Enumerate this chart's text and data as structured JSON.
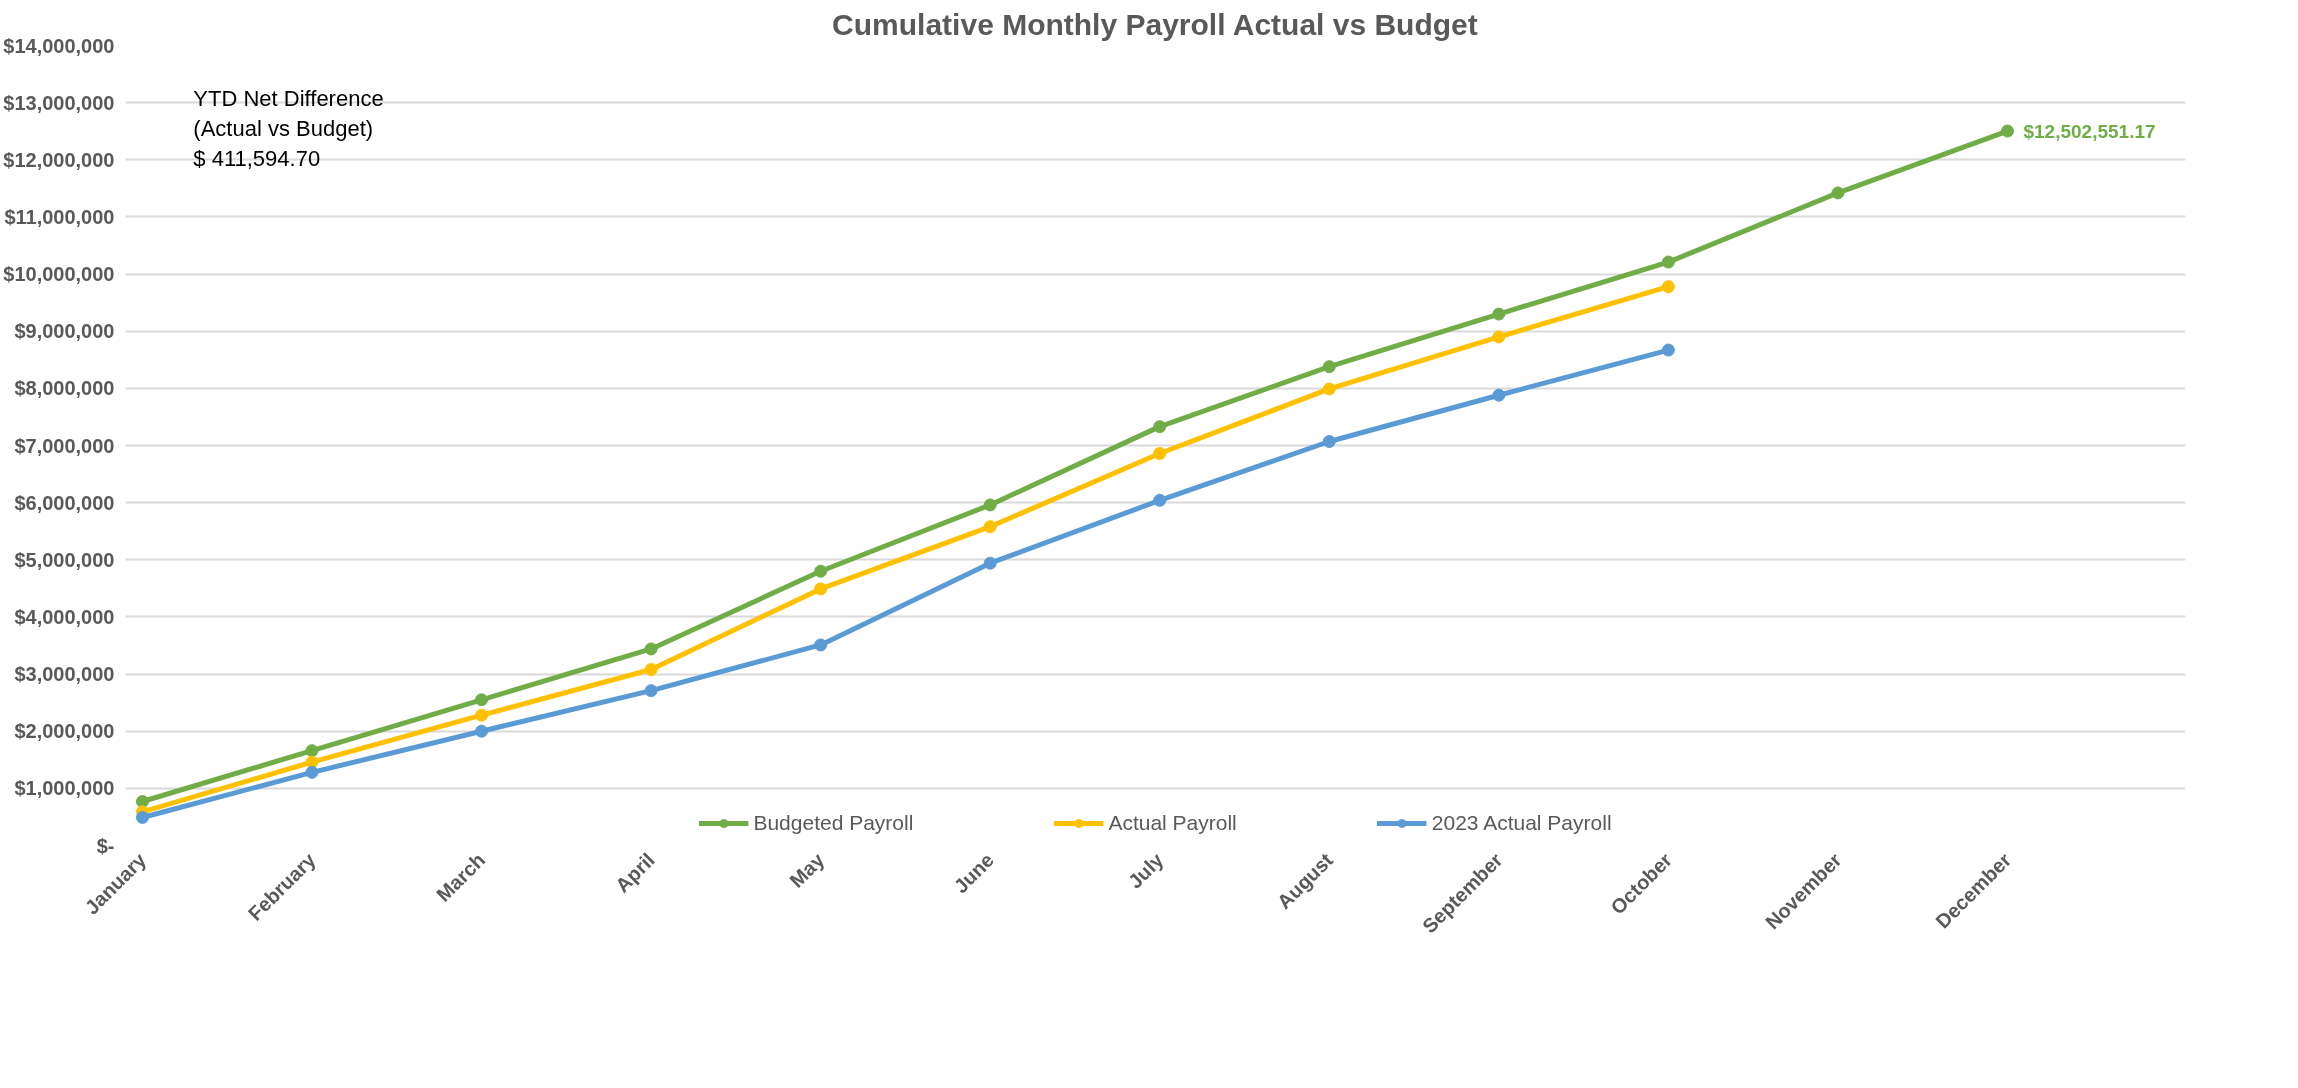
{
  "chart_data": {
    "type": "line",
    "title": "Cumulative Monthly Payroll Actual vs Budget",
    "categories": [
      "January",
      "February",
      "March",
      "April",
      "May",
      "June",
      "July",
      "August",
      "September",
      "October",
      "November",
      "December"
    ],
    "series": [
      {
        "name": "Budgeted Payroll",
        "color": "#70ad47",
        "values": [
          770000,
          1660000,
          2550000,
          3440000,
          4800000,
          5960000,
          7330000,
          8380000,
          9300000,
          10210000,
          11420000,
          12502551.17
        ],
        "value_labels": [
          null,
          null,
          null,
          null,
          null,
          null,
          null,
          null,
          null,
          null,
          null,
          "$12,502,551.17"
        ]
      },
      {
        "name": "Actual Payroll",
        "color": "#ffc000",
        "values": [
          590000,
          1460000,
          2280000,
          3080000,
          4490000,
          5580000,
          6860000,
          7990000,
          8900000,
          9780000,
          null,
          null
        ]
      },
      {
        "name": "2023 Actual Payroll",
        "color": "#5b9bd5",
        "values": [
          490000,
          1280000,
          2000000,
          2710000,
          3510000,
          4940000,
          6040000,
          7070000,
          7880000,
          8670000,
          null,
          null
        ]
      }
    ],
    "ylim": [
      0,
      14000000
    ],
    "yticks": [
      {
        "value": 0,
        "label": "$-"
      },
      {
        "value": 1000000,
        "label": "$1,000,000"
      },
      {
        "value": 2000000,
        "label": "$2,000,000"
      },
      {
        "value": 3000000,
        "label": "$3,000,000"
      },
      {
        "value": 4000000,
        "label": "$4,000,000"
      },
      {
        "value": 5000000,
        "label": "$5,000,000"
      },
      {
        "value": 6000000,
        "label": "$6,000,000"
      },
      {
        "value": 7000000,
        "label": "$7,000,000"
      },
      {
        "value": 8000000,
        "label": "$8,000,000"
      },
      {
        "value": 9000000,
        "label": "$9,000,000"
      },
      {
        "value": 10000000,
        "label": "$10,000,000"
      },
      {
        "value": 11000000,
        "label": "$11,000,000"
      },
      {
        "value": 12000000,
        "label": "$12,000,000"
      },
      {
        "value": 13000000,
        "label": "$13,000,000"
      },
      {
        "value": 14000000,
        "label": "$14,000,000"
      }
    ],
    "annotations": [
      "YTD Net Difference\n(Actual vs Budget)\n$ 411,594.70"
    ],
    "grid": "y",
    "legend": "bottom",
    "marker": "circle",
    "line_style": "solid"
  }
}
